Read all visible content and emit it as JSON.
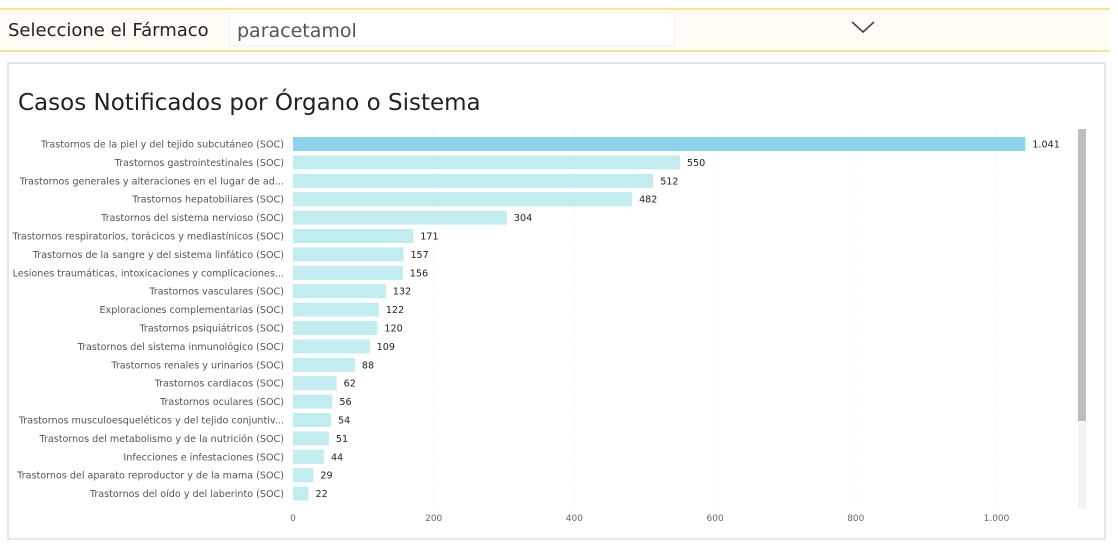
{
  "slicer": {
    "label": "Seleccione el Fármaco",
    "selected_value": "paracetamol",
    "chevron_icon": "chevron-down-icon"
  },
  "chart_data": {
    "type": "bar",
    "orientation": "horizontal",
    "title": "Casos Notificados por Órgano o Sistema",
    "xlabel": "",
    "ylabel": "",
    "xlim": [
      0,
      1100
    ],
    "xticks": [
      0,
      200,
      400,
      600,
      800,
      1000
    ],
    "xtick_labels": [
      "0",
      "200",
      "400",
      "600",
      "800",
      "1.000"
    ],
    "grid": true,
    "categories": [
      "Trastornos de la piel y del tejido subcutáneo (SOC)",
      "Trastornos gastrointestinales (SOC)",
      "Trastornos generales y alteraciones en el lugar de ad...",
      "Trastornos hepatobiliares (SOC)",
      "Trastornos del sistema nervioso (SOC)",
      "Trastornos respiratorios, torácicos y mediastínicos (SOC)",
      "Trastornos de la sangre y del sistema linfático (SOC)",
      "Lesiones traumáticas, intoxicaciones y complicaciones...",
      "Trastornos vasculares (SOC)",
      "Exploraciones complementarias (SOC)",
      "Trastornos psiquiátricos (SOC)",
      "Trastornos del sistema inmunológico (SOC)",
      "Trastornos renales y urinarios (SOC)",
      "Trastornos cardiacos (SOC)",
      "Trastornos oculares (SOC)",
      "Trastornos musculoesqueléticos y del tejido conjuntiv...",
      "Trastornos del metabolismo y de la nutrición (SOC)",
      "Infecciones e infestaciones (SOC)",
      "Trastornos del aparato reproductor y de la mama (SOC)",
      "Trastornos del oído y del laberinto (SOC)"
    ],
    "values": [
      1041,
      550,
      512,
      482,
      304,
      171,
      157,
      156,
      132,
      122,
      120,
      109,
      88,
      62,
      56,
      54,
      51,
      44,
      29,
      22
    ],
    "value_labels": [
      "1.041",
      "550",
      "512",
      "482",
      "304",
      "171",
      "157",
      "156",
      "132",
      "122",
      "120",
      "109",
      "88",
      "62",
      "56",
      "54",
      "51",
      "44",
      "29",
      "22"
    ],
    "colors": {
      "highlight": "#8dd3ec",
      "bar": "#c2ecf0",
      "grid": "#ececec"
    },
    "highlight_index": 0
  }
}
